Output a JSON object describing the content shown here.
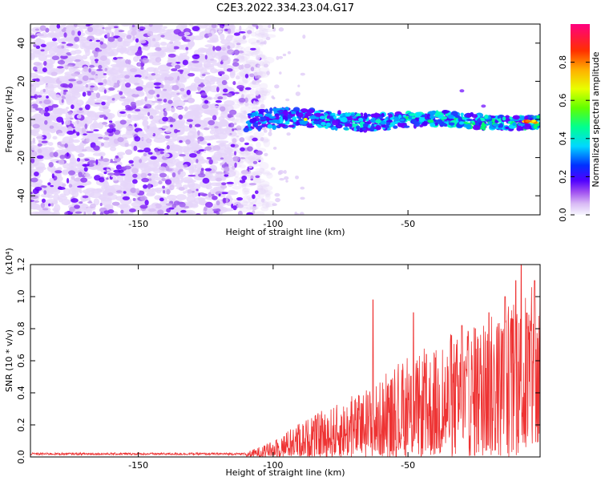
{
  "title": "C2E3.2022.334.23.04.G17",
  "chart_data": [
    {
      "type": "heatmap",
      "xlabel": "Height of straight line (km)",
      "ylabel": "Frequency (Hz)",
      "xlim": [
        -190,
        -1
      ],
      "ylim": [
        -50,
        50
      ],
      "xticks": [
        -150,
        -100,
        -50
      ],
      "yticks": [
        -40,
        -20,
        0,
        20,
        40
      ],
      "colorbar": {
        "label": "Normalized spectral amplitude",
        "range": [
          0,
          1
        ],
        "ticks": [
          "0.0",
          "0.2",
          "0.4",
          "0.6",
          "0.8"
        ]
      },
      "signal_band": {
        "x_start": -110,
        "x_end": -1,
        "freq_center": 0,
        "freq_halfwidth": 5
      },
      "noise_region": {
        "x_start": -190,
        "x_end": -105,
        "ylim": [
          -50,
          50
        ]
      }
    },
    {
      "type": "line",
      "xlabel": "Height of straight line (km)",
      "ylabel": "SNR (10 * v/v)",
      "scale_label": "(x10⁴)",
      "xlim": [
        -190,
        -1
      ],
      "ylim": [
        0,
        1.2
      ],
      "xticks": [
        -150,
        -100,
        -50
      ],
      "yticks": [
        "0.0",
        "0.2",
        "0.4",
        "0.6",
        "0.8",
        "1.0",
        "1.2"
      ],
      "series": [
        {
          "color": "#ee3333",
          "envelope_x": [
            -190,
            -110,
            -100,
            -90,
            -80,
            -70,
            -60,
            -50,
            -40,
            -30,
            -20,
            -10,
            -5,
            -1
          ],
          "envelope_y": [
            0.02,
            0.03,
            0.1,
            0.22,
            0.3,
            0.38,
            0.48,
            0.6,
            0.68,
            0.78,
            0.88,
            0.95,
            1.05,
            1.12
          ],
          "spike_x": [
            -63,
            -48,
            -30,
            -25,
            -20,
            -14,
            -10,
            -8,
            -3
          ],
          "spike_y": [
            0.98,
            0.9,
            0.82,
            0.8,
            0.9,
            1.0,
            1.1,
            1.2,
            1.1
          ]
        }
      ]
    }
  ]
}
